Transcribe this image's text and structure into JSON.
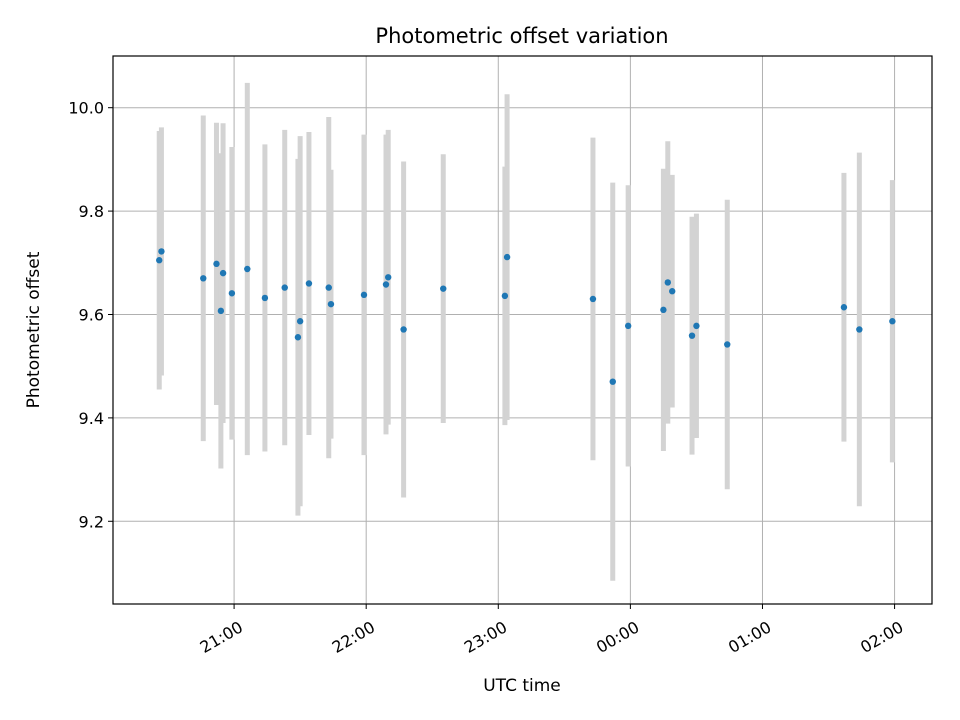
{
  "chart_data": {
    "type": "scatter",
    "title": "Photometric offset variation",
    "xlabel": "UTC time",
    "ylabel": "Photometric offset",
    "x_unit": "hour",
    "x_day_boundary": "00:00",
    "xlim": [
      "20:05",
      "02:17"
    ],
    "ylim": [
      9.04,
      10.1
    ],
    "x_ticks": [
      "21:00",
      "22:00",
      "23:00",
      "00:00",
      "01:00",
      "02:00"
    ],
    "y_ticks": [
      "9.2",
      "9.4",
      "9.6",
      "9.8",
      "10.0"
    ],
    "grid": true,
    "marker_color": "#1f77b4",
    "errorbar_color": "#d3d3d3",
    "points": [
      {
        "x": "20:26",
        "y": 9.705,
        "err": 0.25
      },
      {
        "x": "20:27",
        "y": 9.722,
        "err": 0.24
      },
      {
        "x": "20:46",
        "y": 9.67,
        "err": 0.315
      },
      {
        "x": "20:52",
        "y": 9.698,
        "err": 0.273
      },
      {
        "x": "20:54",
        "y": 9.607,
        "err": 0.305
      },
      {
        "x": "20:55",
        "y": 9.68,
        "err": 0.29
      },
      {
        "x": "20:59",
        "y": 9.641,
        "err": 0.283
      },
      {
        "x": "21:06",
        "y": 9.688,
        "err": 0.36
      },
      {
        "x": "21:14",
        "y": 9.632,
        "err": 0.297
      },
      {
        "x": "21:23",
        "y": 9.652,
        "err": 0.305
      },
      {
        "x": "21:29",
        "y": 9.556,
        "err": 0.345
      },
      {
        "x": "21:30",
        "y": 9.587,
        "err": 0.358
      },
      {
        "x": "21:34",
        "y": 9.66,
        "err": 0.293
      },
      {
        "x": "21:43",
        "y": 9.652,
        "err": 0.33
      },
      {
        "x": "21:44",
        "y": 9.62,
        "err": 0.26
      },
      {
        "x": "21:59",
        "y": 9.638,
        "err": 0.31
      },
      {
        "x": "22:09",
        "y": 9.658,
        "err": 0.29
      },
      {
        "x": "22:10",
        "y": 9.672,
        "err": 0.285
      },
      {
        "x": "22:17",
        "y": 9.571,
        "err": 0.325
      },
      {
        "x": "22:35",
        "y": 9.65,
        "err": 0.26
      },
      {
        "x": "23:03",
        "y": 9.636,
        "err": 0.25
      },
      {
        "x": "23:04",
        "y": 9.711,
        "err": 0.315
      },
      {
        "x": "23:43",
        "y": 9.63,
        "err": 0.312
      },
      {
        "x": "23:52",
        "y": 9.47,
        "err": 0.385
      },
      {
        "x": "23:59",
        "y": 9.578,
        "err": 0.272
      },
      {
        "x": "00:15",
        "y": 9.609,
        "err": 0.273
      },
      {
        "x": "00:17",
        "y": 9.662,
        "err": 0.273
      },
      {
        "x": "00:19",
        "y": 9.645,
        "err": 0.225
      },
      {
        "x": "00:28",
        "y": 9.559,
        "err": 0.23
      },
      {
        "x": "00:30",
        "y": 9.578,
        "err": 0.217
      },
      {
        "x": "00:44",
        "y": 9.542,
        "err": 0.28
      },
      {
        "x": "01:37",
        "y": 9.614,
        "err": 0.26
      },
      {
        "x": "01:44",
        "y": 9.571,
        "err": 0.342
      },
      {
        "x": "01:59",
        "y": 9.587,
        "err": 0.273
      }
    ]
  }
}
